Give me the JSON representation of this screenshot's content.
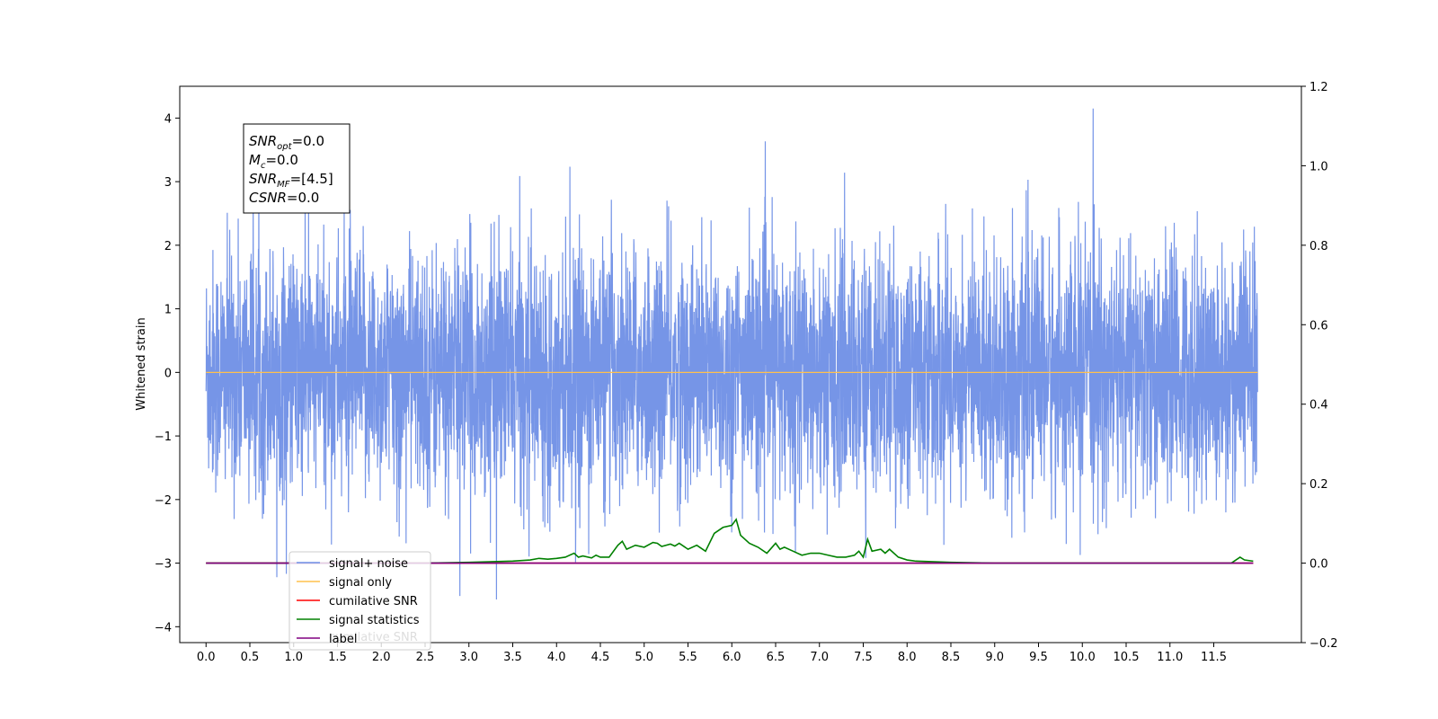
{
  "chart_data": {
    "type": "line",
    "ylabel": "Whitened strain",
    "x_ticks": [
      "0.0",
      "0.5",
      "1.0",
      "1.5",
      "2.0",
      "2.5",
      "3.0",
      "3.5",
      "4.0",
      "4.5",
      "5.0",
      "5.5",
      "6.0",
      "6.5",
      "7.0",
      "7.5",
      "8.0",
      "8.5",
      "9.0",
      "9.5",
      "10.0",
      "10.5",
      "11.0",
      "11.5"
    ],
    "xlim": [
      -0.3,
      12.5
    ],
    "ylim_left": [
      -4.25,
      4.5
    ],
    "yticks_left": [
      "−4",
      "−3",
      "−2",
      "−1",
      "0",
      "1",
      "2",
      "3",
      "4"
    ],
    "ylim_right": [
      -0.2,
      1.2
    ],
    "yticks_right": [
      "−0.2",
      "0.0",
      "0.2",
      "0.4",
      "0.6",
      "0.8",
      "1.0",
      "1.2"
    ],
    "legend": {
      "placement": "lower-left",
      "entries": [
        {
          "label": "signal+ noise",
          "color": "#6f8fe6"
        },
        {
          "label": "signal only",
          "color": "#ffc04d"
        },
        {
          "label": "cumilative SNR",
          "color": "#ff0000"
        },
        {
          "label": "signal statistics",
          "color": "#008000"
        },
        {
          "label": "label",
          "color": "#800080"
        }
      ],
      "hidden_text": "cumilative SNR"
    },
    "annotation": {
      "lines": [
        {
          "var": "SNR",
          "sub": "opt",
          "value": "=0.0"
        },
        {
          "var": "M",
          "sub": "c",
          "value": "=0.0"
        },
        {
          "var": "SNR",
          "sub": "MF",
          "value": "=[4.5]"
        },
        {
          "var": "CSNR",
          "sub": "",
          "value": "=0.0"
        }
      ]
    },
    "series": [
      {
        "name": "signal+ noise",
        "axis": "left",
        "color": "#6f8fe6",
        "x_range": [
          0.0,
          12.0
        ],
        "description_mean": 0.0,
        "description_std": 0.95
      },
      {
        "name": "signal only",
        "axis": "left",
        "color": "#ffc04d",
        "x": [
          0.0,
          12.0
        ],
        "y": [
          0.0,
          0.0
        ]
      },
      {
        "name": "cumilative SNR",
        "axis": "right",
        "color": "#ff0000",
        "x": [
          0.0,
          11.95
        ],
        "y": [
          0.0,
          0.0
        ]
      },
      {
        "name": "signal statistics",
        "axis": "right",
        "color": "#008000",
        "x": [
          0.0,
          0.5,
          1.0,
          1.5,
          2.0,
          2.5,
          3.0,
          3.5,
          3.7,
          3.8,
          3.9,
          4.0,
          4.1,
          4.2,
          4.25,
          4.3,
          4.4,
          4.45,
          4.5,
          4.6,
          4.7,
          4.75,
          4.8,
          4.9,
          5.0,
          5.1,
          5.15,
          5.2,
          5.3,
          5.35,
          5.4,
          5.5,
          5.6,
          5.7,
          5.8,
          5.9,
          6.0,
          6.05,
          6.1,
          6.2,
          6.3,
          6.4,
          6.5,
          6.55,
          6.6,
          6.7,
          6.8,
          6.9,
          7.0,
          7.1,
          7.2,
          7.3,
          7.4,
          7.45,
          7.5,
          7.55,
          7.6,
          7.7,
          7.75,
          7.8,
          7.9,
          8.0,
          8.1,
          8.5,
          9.0,
          9.5,
          10.0,
          10.5,
          11.0,
          11.5,
          11.7,
          11.8,
          11.85,
          11.95
        ],
        "y": [
          0.0,
          0.0,
          0.0,
          0.0,
          0.0,
          0.0,
          0.002,
          0.005,
          0.008,
          0.012,
          0.01,
          0.012,
          0.015,
          0.025,
          0.015,
          0.018,
          0.013,
          0.02,
          0.015,
          0.015,
          0.045,
          0.055,
          0.035,
          0.045,
          0.04,
          0.052,
          0.05,
          0.042,
          0.048,
          0.043,
          0.05,
          0.035,
          0.045,
          0.03,
          0.075,
          0.09,
          0.095,
          0.11,
          0.07,
          0.05,
          0.04,
          0.025,
          0.05,
          0.035,
          0.04,
          0.03,
          0.02,
          0.025,
          0.025,
          0.02,
          0.015,
          0.015,
          0.02,
          0.03,
          0.015,
          0.06,
          0.03,
          0.035,
          0.025,
          0.035,
          0.015,
          0.008,
          0.005,
          0.002,
          0.0,
          0.0,
          0.0,
          0.0,
          0.0,
          0.0,
          0.0,
          0.015,
          0.008,
          0.005
        ]
      },
      {
        "name": "label",
        "axis": "right",
        "color": "#800080",
        "x": [
          0.0,
          11.95
        ],
        "y": [
          0.0,
          0.0
        ]
      }
    ]
  }
}
